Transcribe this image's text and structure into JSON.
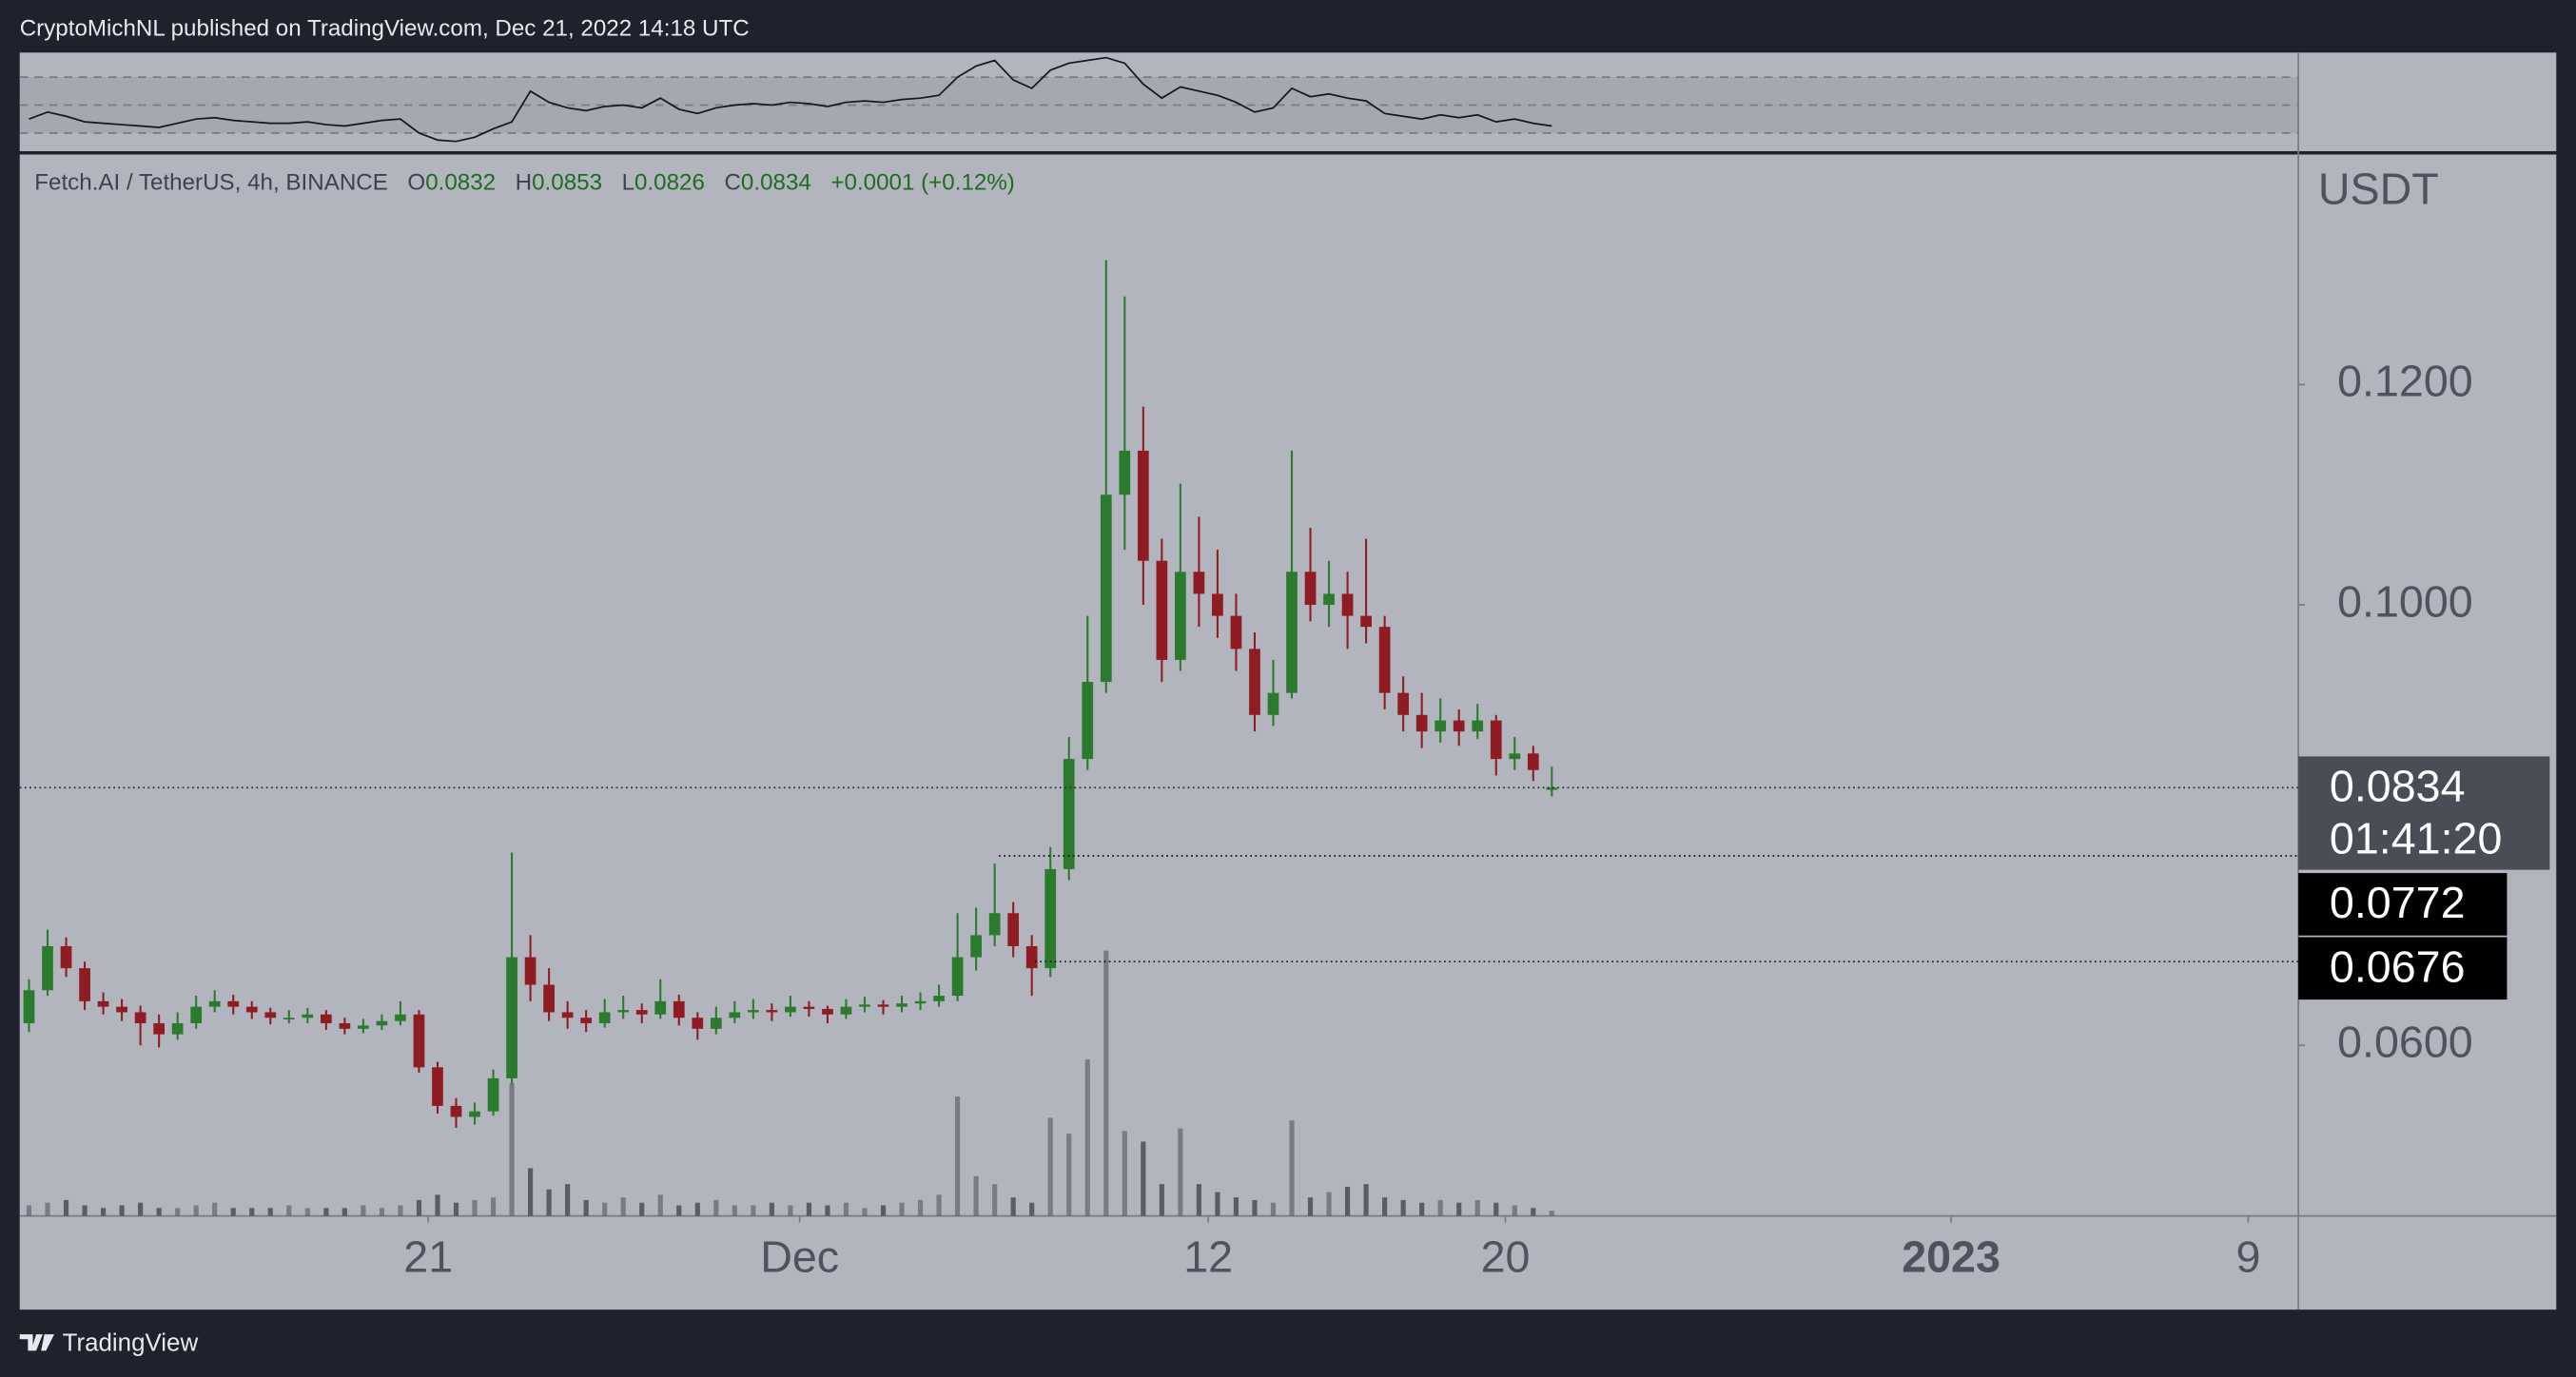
{
  "header": {
    "text": "CryptoMichNL published on TradingView.com, Dec 21, 2022 14:18 UTC"
  },
  "footer": {
    "brand": "TradingView"
  },
  "chart_data": {
    "type": "candlestick",
    "legend": {
      "symbol": "Fetch.AI / TetherUS, 4h, BINANCE",
      "labels": [
        "O",
        "H",
        "L",
        "C"
      ],
      "open": 0.0832,
      "high": 0.0853,
      "low": 0.0826,
      "close": 0.0834,
      "change": "+0.0001 (+0.12%)"
    },
    "currency": "USDT",
    "up_color": "#2b7a2e",
    "down_color": "#8e1c22",
    "volume_color": "#5a5d66",
    "ylim": [
      0.0445,
      0.1409
    ],
    "yticks": [
      {
        "value": 0.12,
        "label": "0.1200"
      },
      {
        "value": 0.1,
        "label": "0.1000"
      },
      {
        "value": 0.06,
        "label": "0.0600"
      }
    ],
    "xlim": [
      0,
      122.7
    ],
    "xticks": [
      {
        "value": 22,
        "label": "21"
      },
      {
        "value": 42,
        "label": "Dec"
      },
      {
        "value": 64,
        "label": "12"
      },
      {
        "value": 80,
        "label": "20"
      },
      {
        "value": 104,
        "label": "2023"
      },
      {
        "value": 120,
        "label": "9"
      }
    ],
    "last_price": 0.0834,
    "countdown": "01:41:20",
    "levels": [
      0.0772,
      0.0676
    ],
    "volume_lim": [
      0,
      400
    ],
    "rsi_lim": [
      17,
      87.6
    ],
    "rsi_levels": [
      70,
      50,
      30
    ],
    "ohlc": [
      [
        0.062,
        0.066,
        0.0612,
        0.065
      ],
      [
        0.065,
        0.0705,
        0.0645,
        0.069
      ],
      [
        0.069,
        0.0698,
        0.0662,
        0.067
      ],
      [
        0.067,
        0.0676,
        0.0632,
        0.064
      ],
      [
        0.064,
        0.0648,
        0.0628,
        0.0635
      ],
      [
        0.0635,
        0.0642,
        0.0622,
        0.063
      ],
      [
        0.063,
        0.0636,
        0.06,
        0.062
      ],
      [
        0.062,
        0.0628,
        0.0598,
        0.061
      ],
      [
        0.061,
        0.063,
        0.0605,
        0.062
      ],
      [
        0.062,
        0.0645,
        0.0615,
        0.0635
      ],
      [
        0.0635,
        0.065,
        0.063,
        0.064
      ],
      [
        0.064,
        0.0646,
        0.0628,
        0.0635
      ],
      [
        0.0635,
        0.064,
        0.0624,
        0.063
      ],
      [
        0.063,
        0.0634,
        0.0619,
        0.0625
      ],
      [
        0.0625,
        0.0632,
        0.062,
        0.0625
      ],
      [
        0.0625,
        0.0634,
        0.062,
        0.0628
      ],
      [
        0.0628,
        0.0632,
        0.0614,
        0.062
      ],
      [
        0.062,
        0.0625,
        0.061,
        0.0615
      ],
      [
        0.0615,
        0.0624,
        0.0611,
        0.0618
      ],
      [
        0.0618,
        0.0628,
        0.0614,
        0.0622
      ],
      [
        0.0622,
        0.064,
        0.0618,
        0.0628
      ],
      [
        0.0628,
        0.0632,
        0.0575,
        0.058
      ],
      [
        0.058,
        0.0585,
        0.0538,
        0.0545
      ],
      [
        0.0545,
        0.0552,
        0.0525,
        0.0535
      ],
      [
        0.0535,
        0.0548,
        0.0528,
        0.054
      ],
      [
        0.054,
        0.0578,
        0.0536,
        0.057
      ],
      [
        0.057,
        0.0775,
        0.0565,
        0.068
      ],
      [
        0.068,
        0.07,
        0.064,
        0.0655
      ],
      [
        0.0655,
        0.067,
        0.0622,
        0.063
      ],
      [
        0.063,
        0.064,
        0.0615,
        0.0625
      ],
      [
        0.0625,
        0.0632,
        0.0612,
        0.062
      ],
      [
        0.062,
        0.0642,
        0.0616,
        0.063
      ],
      [
        0.063,
        0.0645,
        0.0624,
        0.0632
      ],
      [
        0.0632,
        0.0638,
        0.062,
        0.0628
      ],
      [
        0.0628,
        0.066,
        0.0624,
        0.064
      ],
      [
        0.064,
        0.0646,
        0.0618,
        0.0625
      ],
      [
        0.0625,
        0.063,
        0.0605,
        0.0615
      ],
      [
        0.0615,
        0.0635,
        0.061,
        0.0625
      ],
      [
        0.0625,
        0.064,
        0.062,
        0.063
      ],
      [
        0.063,
        0.0642,
        0.0624,
        0.0632
      ],
      [
        0.0632,
        0.0638,
        0.0622,
        0.063
      ],
      [
        0.063,
        0.0645,
        0.0626,
        0.0635
      ],
      [
        0.0635,
        0.064,
        0.0626,
        0.0633
      ],
      [
        0.0633,
        0.0636,
        0.062,
        0.0628
      ],
      [
        0.0628,
        0.0642,
        0.0624,
        0.0635
      ],
      [
        0.0635,
        0.0644,
        0.063,
        0.0637
      ],
      [
        0.0637,
        0.0641,
        0.0628,
        0.0635
      ],
      [
        0.0635,
        0.0645,
        0.063,
        0.0638
      ],
      [
        0.0638,
        0.0648,
        0.0632,
        0.064
      ],
      [
        0.064,
        0.0655,
        0.0635,
        0.0645
      ],
      [
        0.0645,
        0.072,
        0.064,
        0.068
      ],
      [
        0.068,
        0.0725,
        0.0668,
        0.07
      ],
      [
        0.07,
        0.0765,
        0.069,
        0.072
      ],
      [
        0.072,
        0.073,
        0.068,
        0.069
      ],
      [
        0.069,
        0.07,
        0.0645,
        0.067
      ],
      [
        0.067,
        0.078,
        0.0662,
        0.076
      ],
      [
        0.076,
        0.088,
        0.075,
        0.086
      ],
      [
        0.086,
        0.099,
        0.085,
        0.093
      ],
      [
        0.093,
        0.1313,
        0.092,
        0.11
      ],
      [
        0.11,
        0.128,
        0.105,
        0.114
      ],
      [
        0.114,
        0.118,
        0.1,
        0.104
      ],
      [
        0.104,
        0.106,
        0.093,
        0.095
      ],
      [
        0.095,
        0.111,
        0.094,
        0.103
      ],
      [
        0.103,
        0.108,
        0.098,
        0.101
      ],
      [
        0.101,
        0.105,
        0.097,
        0.099
      ],
      [
        0.099,
        0.101,
        0.094,
        0.096
      ],
      [
        0.096,
        0.0975,
        0.0885,
        0.09
      ],
      [
        0.09,
        0.095,
        0.089,
        0.092
      ],
      [
        0.092,
        0.114,
        0.0915,
        0.103
      ],
      [
        0.103,
        0.107,
        0.0985,
        0.1
      ],
      [
        0.1,
        0.104,
        0.098,
        0.101
      ],
      [
        0.101,
        0.103,
        0.096,
        0.099
      ],
      [
        0.099,
        0.106,
        0.0965,
        0.098
      ],
      [
        0.098,
        0.099,
        0.0905,
        0.092
      ],
      [
        0.092,
        0.0935,
        0.0885,
        0.09
      ],
      [
        0.09,
        0.092,
        0.087,
        0.0885
      ],
      [
        0.0885,
        0.0915,
        0.0875,
        0.0895
      ],
      [
        0.0895,
        0.0905,
        0.0872,
        0.0885
      ],
      [
        0.0885,
        0.091,
        0.0878,
        0.0895
      ],
      [
        0.0895,
        0.09,
        0.0845,
        0.086
      ],
      [
        0.086,
        0.088,
        0.085,
        0.0865
      ],
      [
        0.0865,
        0.0872,
        0.084,
        0.085
      ],
      [
        0.0832,
        0.0853,
        0.0826,
        0.0834
      ]
    ],
    "volume": [
      4,
      5,
      6,
      4,
      3,
      4,
      5,
      3,
      3,
      4,
      5,
      3,
      3,
      3,
      4,
      3,
      3,
      3,
      4,
      3,
      4,
      6,
      8,
      5,
      6,
      7,
      50,
      18,
      10,
      12,
      6,
      5,
      7,
      5,
      8,
      4,
      5,
      6,
      4,
      4,
      5,
      4,
      5,
      4,
      5,
      3,
      4,
      5,
      6,
      8,
      45,
      15,
      12,
      7,
      5,
      37,
      31,
      59,
      100,
      32,
      28,
      12,
      33,
      12,
      9,
      7,
      6,
      5,
      36,
      7,
      9,
      11,
      12,
      7,
      6,
      5,
      6,
      5,
      6,
      5,
      4,
      3,
      2
    ],
    "rsi": [
      40,
      45,
      42,
      38,
      37,
      36,
      35,
      34,
      37,
      40,
      41,
      39,
      38,
      37,
      37,
      38,
      36,
      35,
      37,
      39,
      40,
      30,
      25,
      24,
      27,
      33,
      38,
      60,
      52,
      48,
      46,
      49,
      50,
      48,
      55,
      47,
      44,
      48,
      50,
      51,
      50,
      52,
      51,
      49,
      52,
      53,
      52,
      54,
      55,
      57,
      70,
      78,
      82,
      68,
      62,
      75,
      80,
      82,
      84,
      80,
      65,
      55,
      63,
      60,
      57,
      52,
      45,
      48,
      62,
      56,
      58,
      55,
      53,
      44,
      42,
      40,
      43,
      41,
      43,
      38,
      40,
      37,
      35
    ]
  }
}
